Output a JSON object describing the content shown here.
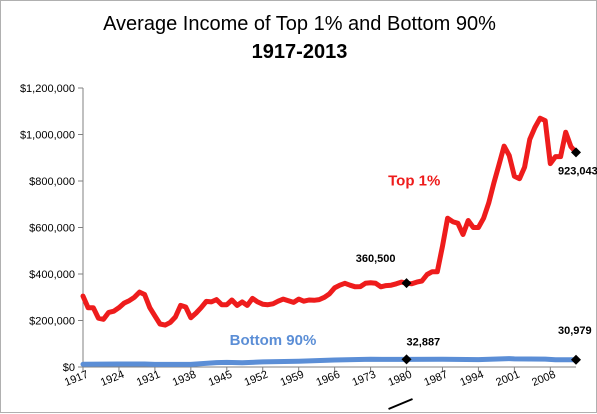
{
  "chart_data": {
    "type": "line",
    "title_line1": "Average Income of Top 1% and Bottom 90%",
    "title_line2": "1917-2013",
    "xlabel": "",
    "ylabel": "",
    "xlim": [
      1917,
      2013
    ],
    "ylim": [
      0,
      1200000
    ],
    "grid": false,
    "x_ticks": [
      1917,
      1924,
      1931,
      1938,
      1945,
      1952,
      1959,
      1966,
      1973,
      1980,
      1987,
      1994,
      2001,
      2008
    ],
    "y_ticks": [
      0,
      200000,
      400000,
      600000,
      800000,
      1000000,
      1200000
    ],
    "y_tick_labels": [
      "$0",
      "$200,000",
      "$400,000",
      "$600,000",
      "$800,000",
      "$1,000,000",
      "$1,200,000"
    ],
    "series": [
      {
        "name": "Top 1%",
        "color": "#ee1c1c",
        "points": [
          [
            1917,
            305000
          ],
          [
            1918,
            255000
          ],
          [
            1919,
            255000
          ],
          [
            1920,
            210000
          ],
          [
            1921,
            205000
          ],
          [
            1922,
            235000
          ],
          [
            1923,
            240000
          ],
          [
            1924,
            255000
          ],
          [
            1925,
            275000
          ],
          [
            1926,
            285000
          ],
          [
            1927,
            300000
          ],
          [
            1928,
            322000
          ],
          [
            1929,
            312000
          ],
          [
            1930,
            255000
          ],
          [
            1931,
            220000
          ],
          [
            1932,
            185000
          ],
          [
            1933,
            180000
          ],
          [
            1934,
            192000
          ],
          [
            1935,
            215000
          ],
          [
            1936,
            265000
          ],
          [
            1937,
            258000
          ],
          [
            1938,
            212000
          ],
          [
            1939,
            232000
          ],
          [
            1940,
            255000
          ],
          [
            1941,
            282000
          ],
          [
            1942,
            280000
          ],
          [
            1943,
            290000
          ],
          [
            1944,
            268000
          ],
          [
            1945,
            268000
          ],
          [
            1946,
            288000
          ],
          [
            1947,
            265000
          ],
          [
            1948,
            280000
          ],
          [
            1949,
            265000
          ],
          [
            1950,
            295000
          ],
          [
            1951,
            280000
          ],
          [
            1952,
            270000
          ],
          [
            1953,
            268000
          ],
          [
            1954,
            272000
          ],
          [
            1955,
            283000
          ],
          [
            1956,
            292000
          ],
          [
            1957,
            285000
          ],
          [
            1958,
            278000
          ],
          [
            1959,
            292000
          ],
          [
            1960,
            283000
          ],
          [
            1961,
            288000
          ],
          [
            1962,
            287000
          ],
          [
            1963,
            290000
          ],
          [
            1964,
            300000
          ],
          [
            1965,
            315000
          ],
          [
            1966,
            340000
          ],
          [
            1967,
            352000
          ],
          [
            1968,
            360000
          ],
          [
            1969,
            352000
          ],
          [
            1970,
            345000
          ],
          [
            1971,
            346000
          ],
          [
            1972,
            360000
          ],
          [
            1973,
            362000
          ],
          [
            1974,
            360000
          ],
          [
            1975,
            345000
          ],
          [
            1976,
            350000
          ],
          [
            1977,
            352000
          ],
          [
            1978,
            358000
          ],
          [
            1979,
            365000
          ],
          [
            1980,
            360500
          ],
          [
            1981,
            358000
          ],
          [
            1982,
            365000
          ],
          [
            1983,
            370000
          ],
          [
            1984,
            398000
          ],
          [
            1985,
            410000
          ],
          [
            1986,
            410000
          ],
          [
            1987,
            520000
          ],
          [
            1988,
            640000
          ],
          [
            1989,
            625000
          ],
          [
            1990,
            618000
          ],
          [
            1991,
            570000
          ],
          [
            1992,
            630000
          ],
          [
            1993,
            600000
          ],
          [
            1994,
            600000
          ],
          [
            1995,
            640000
          ],
          [
            1996,
            705000
          ],
          [
            1997,
            790000
          ],
          [
            1998,
            870000
          ],
          [
            1999,
            950000
          ],
          [
            2000,
            910000
          ],
          [
            2001,
            820000
          ],
          [
            2002,
            810000
          ],
          [
            2003,
            860000
          ],
          [
            2004,
            980000
          ],
          [
            2005,
            1030000
          ],
          [
            2006,
            1070000
          ],
          [
            2007,
            1060000
          ],
          [
            2008,
            875000
          ],
          [
            2009,
            905000
          ],
          [
            2010,
            905000
          ],
          [
            2011,
            1010000
          ],
          [
            2012,
            948000
          ],
          [
            2013,
            923043
          ]
        ]
      },
      {
        "name": "Bottom 90%",
        "color": "#5b8ed6",
        "points": [
          [
            1917,
            12000
          ],
          [
            1924,
            13000
          ],
          [
            1929,
            13000
          ],
          [
            1931,
            11000
          ],
          [
            1938,
            11000
          ],
          [
            1943,
            19000
          ],
          [
            1945,
            20000
          ],
          [
            1948,
            18000
          ],
          [
            1952,
            22000
          ],
          [
            1959,
            25000
          ],
          [
            1966,
            30000
          ],
          [
            1973,
            33000
          ],
          [
            1980,
            32887
          ],
          [
            1987,
            33000
          ],
          [
            1994,
            32000
          ],
          [
            2000,
            36000
          ],
          [
            2001,
            35000
          ],
          [
            2007,
            34000
          ],
          [
            2009,
            31000
          ],
          [
            2013,
            30979
          ]
        ]
      }
    ],
    "annotations": [
      {
        "text": "360,500",
        "x": 1980,
        "y": 360500
      },
      {
        "text": "32,887",
        "x": 1980,
        "y": 32887
      },
      {
        "text": "923,043",
        "x": 2013,
        "y": 923043
      },
      {
        "text": "30,979",
        "x": 2013,
        "y": 30979
      }
    ]
  }
}
